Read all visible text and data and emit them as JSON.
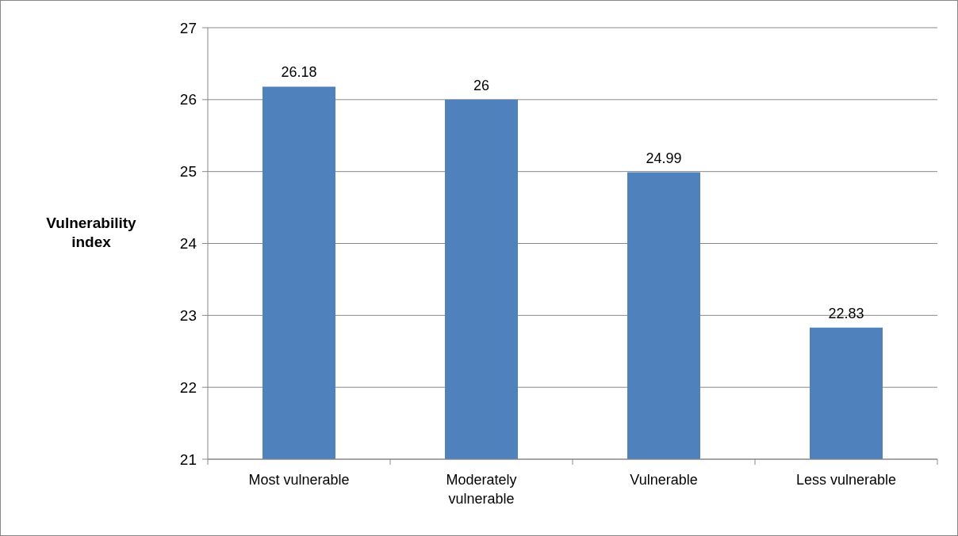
{
  "chart_data": {
    "type": "bar",
    "ylabel": "Vulnerability index",
    "categories": [
      "Most vulnerable",
      "Moderately vulnerable",
      "Vulnerable",
      "Less vulnerable"
    ],
    "values": [
      26.18,
      26,
      24.99,
      22.83
    ],
    "color": "#4f81bd",
    "ylim": [
      21,
      27
    ],
    "yticks": [
      21,
      22,
      23,
      24,
      25,
      26,
      27
    ],
    "grid": "y",
    "data_labels": true
  }
}
